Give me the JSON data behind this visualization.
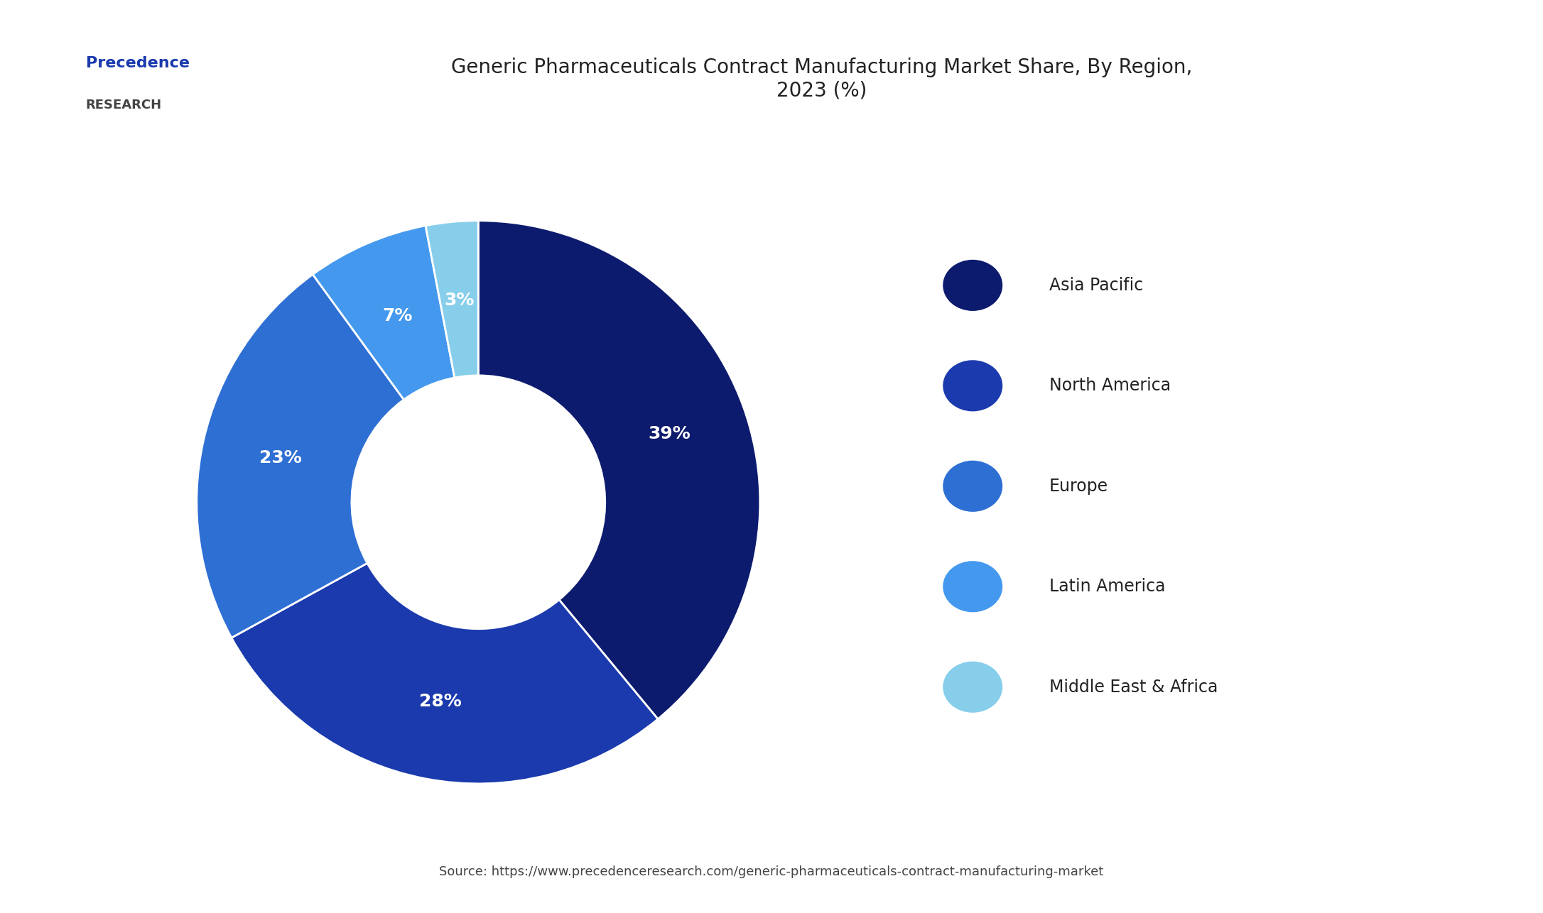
{
  "title": "Generic Pharmaceuticals Contract Manufacturing Market Share, By Region,\n2023 (%)",
  "labels": [
    "Asia Pacific",
    "North America",
    "Europe",
    "Latin America",
    "Middle East & Africa"
  ],
  "values": [
    39,
    28,
    23,
    7,
    3
  ],
  "colors": [
    "#0d1b6e",
    "#1a3aad",
    "#2e6fd4",
    "#4499ee",
    "#87ceeb"
  ],
  "pct_labels": [
    "39%",
    "28%",
    "23%",
    "7%",
    "3%"
  ],
  "source": "Source: https://www.precedenceresearch.com/generic-pharmaceuticals-contract-manufacturing-market",
  "background_color": "#ffffff",
  "title_fontsize": 20,
  "legend_fontsize": 17,
  "pct_fontsize": 18,
  "source_fontsize": 13,
  "startangle": 90
}
